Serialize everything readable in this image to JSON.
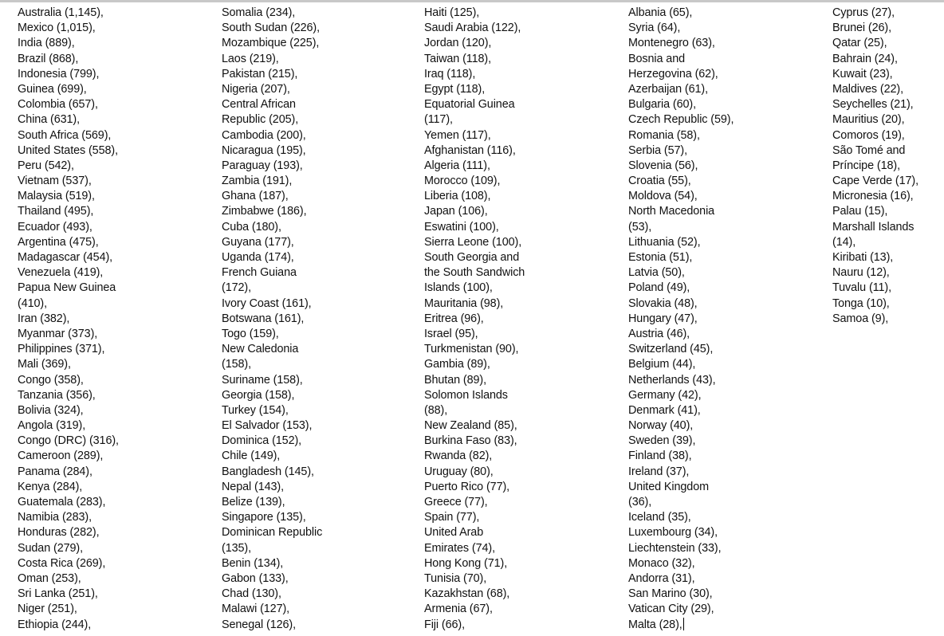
{
  "columns": [
    [
      "Australia (1,145),",
      "Mexico (1,015),",
      "India (889),",
      "Brazil (868),",
      "Indonesia (799),",
      "Guinea (699),",
      "Colombia (657),",
      "China (631),",
      "South Africa (569),",
      "United States (558),",
      "Peru (542),",
      "Vietnam (537),",
      "Malaysia (519),",
      "Thailand (495),",
      "Ecuador (493),",
      "Argentina (475),",
      "Madagascar (454),",
      "Venezuela (419),",
      "Papua New Guinea",
      "(410),",
      "Iran (382),",
      "Myanmar (373),",
      "Philippines (371),",
      "Mali (369),",
      "Congo (358),",
      "Tanzania (356),",
      "Bolivia (324),",
      "Angola (319),",
      "Congo (DRC) (316),",
      "Cameroon (289),",
      "Panama (284),",
      "Kenya (284),",
      "Guatemala (283),",
      "Namibia (283),",
      "Honduras (282),",
      "Sudan (279),",
      "Costa Rica (269),",
      "Oman (253),",
      "Sri Lanka (251),",
      "Niger (251),",
      "Ethiopia (244),"
    ],
    [
      "Somalia (234),",
      "South Sudan (226),",
      "Mozambique (225),",
      "Laos (219),",
      "Pakistan (215),",
      "Nigeria (207),",
      "Central African",
      "Republic (205),",
      "Cambodia (200),",
      "Nicaragua (195),",
      "Paraguay (193),",
      "Zambia (191),",
      "Ghana (187),",
      "Zimbabwe (186),",
      "Cuba (180),",
      "Guyana (177),",
      "Uganda (174),",
      "French Guiana",
      "(172),",
      "Ivory Coast (161),",
      "Botswana (161),",
      "Togo (159),",
      "New Caledonia",
      "(158),",
      "Suriname (158),",
      "Georgia (158),",
      "Turkey (154),",
      "El Salvador (153),",
      "Dominica (152),",
      "Chile (149),",
      "Bangladesh (145),",
      "Nepal (143),",
      "Belize (139),",
      "Singapore (135),",
      "Dominican Republic",
      "(135),",
      "Benin (134),",
      "Gabon (133),",
      "Chad (130),",
      "Malawi (127),",
      "Senegal (126),"
    ],
    [
      "Haiti (125),",
      "Saudi Arabia (122),",
      "Jordan (120),",
      "Taiwan (118),",
      "Iraq (118),",
      "Egypt (118),",
      "Equatorial Guinea",
      "(117),",
      "Yemen (117),",
      "Afghanistan (116),",
      "Algeria (111),",
      "Morocco (109),",
      "Liberia (108),",
      "Japan (106),",
      "Eswatini (100),",
      "Sierra Leone (100),",
      "South Georgia and",
      "the South Sandwich",
      "Islands (100),",
      "Mauritania (98),",
      "Eritrea (96),",
      "Israel (95),",
      "Turkmenistan (90),",
      "Gambia (89),",
      "Bhutan (89),",
      "Solomon Islands",
      "(88),",
      "New Zealand (85),",
      "Burkina Faso (83),",
      "Rwanda (82),",
      "Uruguay (80),",
      "Puerto Rico (77),",
      "Greece (77),",
      "Spain (77),",
      "United Arab",
      "Emirates (74),",
      "Hong Kong (71),",
      "Tunisia (70),",
      "Kazakhstan (68),",
      "Armenia (67),",
      "Fiji (66),"
    ],
    [
      "Albania (65),",
      "Syria (64),",
      "Montenegro (63),",
      "Bosnia and",
      "Herzegovina (62),",
      "Azerbaijan (61),",
      "Bulgaria (60),",
      "Czech Republic (59),",
      "Romania (58),",
      "Serbia (57),",
      "Slovenia (56),",
      "Croatia (55),",
      "Moldova (54),",
      "North Macedonia",
      "(53),",
      "Lithuania (52),",
      "Estonia (51),",
      "Latvia (50),",
      "Poland (49),",
      "Slovakia (48),",
      "Hungary (47),",
      "Austria (46),",
      "Switzerland (45),",
      "Belgium (44),",
      "Netherlands (43),",
      "Germany (42),",
      "Denmark (41),",
      "Norway (40),",
      "Sweden (39),",
      "Finland (38),",
      "Ireland (37),",
      "United Kingdom",
      "(36),",
      "Iceland (35),",
      "Luxembourg (34),",
      "Liechtenstein (33),",
      "Monaco (32),",
      "Andorra (31),",
      "San Marino (30),",
      "Vatican City (29),",
      "Malta (28),"
    ],
    [
      "Cyprus (27),",
      "Brunei (26),",
      "Qatar (25),",
      "Bahrain (24),",
      "Kuwait (23),",
      "Maldives (22),",
      "Seychelles (21),",
      "Mauritius (20),",
      "Comoros (19),",
      "São Tomé and",
      "Príncipe (18),",
      "Cape Verde (17),",
      "Micronesia (16),",
      "Palau (15),",
      "Marshall Islands",
      "(14),",
      "Kiribati (13),",
      "Nauru (12),",
      "Tuvalu (11),",
      "Tonga (10),",
      "Samoa (9),"
    ]
  ]
}
